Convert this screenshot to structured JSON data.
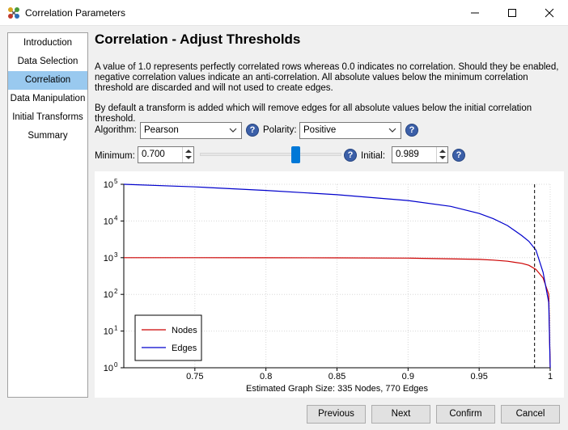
{
  "window": {
    "title": "Correlation Parameters",
    "app_icon": "molecule-icon"
  },
  "sidebar": {
    "items": [
      {
        "label": "Introduction",
        "active": false
      },
      {
        "label": "Data Selection",
        "active": false
      },
      {
        "label": "Correlation",
        "active": true
      },
      {
        "label": "Data Manipulation",
        "active": false
      },
      {
        "label": "Initial Transforms",
        "active": false
      },
      {
        "label": "Summary",
        "active": false
      }
    ],
    "active_color": "#99c9ef"
  },
  "main": {
    "heading": "Correlation - Adjust Thresholds",
    "paragraph1": "A value of 1.0 represents perfectly correlated rows whereas 0.0 indicates no correlation. Should they be enabled, negative correlation values indicate an anti-correlation. All absolute values below the minimum correlation threshold are discarded and will not used to create edges.",
    "paragraph2": "By default a transform is added which will remove edges for all absolute values below the initial correlation threshold.",
    "algorithm": {
      "label": "Algorithm:",
      "value": "Pearson"
    },
    "polarity": {
      "label": "Polarity:",
      "value": "Positive"
    },
    "minimum": {
      "label": "Minimum:",
      "value": "0.700"
    },
    "initial": {
      "label": "Initial:",
      "value": "0.989"
    },
    "slider": {
      "fraction": 0.7
    },
    "help_glyph": "?"
  },
  "chart_data": {
    "type": "line",
    "yscale": "log",
    "xlim": [
      0.7,
      1.0
    ],
    "ylim": [
      1,
      100000
    ],
    "xticks": [
      "0.75",
      "0.8",
      "0.85",
      "0.9",
      "0.95",
      "1"
    ],
    "xtick_values": [
      0.75,
      0.8,
      0.85,
      0.9,
      0.95,
      1.0
    ],
    "yticks_base": "10",
    "yticks_exp": [
      "0",
      "1",
      "2",
      "3",
      "4",
      "5"
    ],
    "xlabel": "Estimated Graph Size: 335 Nodes, 770 Edges",
    "grid": true,
    "threshold_line": 0.989,
    "legend_placement": "bottom-left",
    "series": [
      {
        "name": "Nodes",
        "color": "#cc0000",
        "x": [
          0.7,
          0.75,
          0.8,
          0.85,
          0.9,
          0.95,
          0.96,
          0.97,
          0.98,
          0.985,
          0.99,
          0.995,
          0.999,
          1.0
        ],
        "y": [
          1000,
          1000,
          995,
          990,
          975,
          900,
          860,
          800,
          700,
          620,
          480,
          280,
          100,
          1
        ]
      },
      {
        "name": "Edges",
        "color": "#0000cc",
        "x": [
          0.7,
          0.75,
          0.8,
          0.85,
          0.9,
          0.93,
          0.95,
          0.96,
          0.97,
          0.98,
          0.985,
          0.99,
          0.995,
          0.999,
          1.0
        ],
        "y": [
          100000,
          85000,
          68000,
          52000,
          36000,
          25000,
          16000,
          11500,
          7500,
          4000,
          2800,
          1600,
          400,
          60,
          1
        ]
      }
    ]
  },
  "buttons": {
    "previous": "Previous",
    "next": "Next",
    "confirm": "Confirm",
    "cancel": "Cancel"
  }
}
